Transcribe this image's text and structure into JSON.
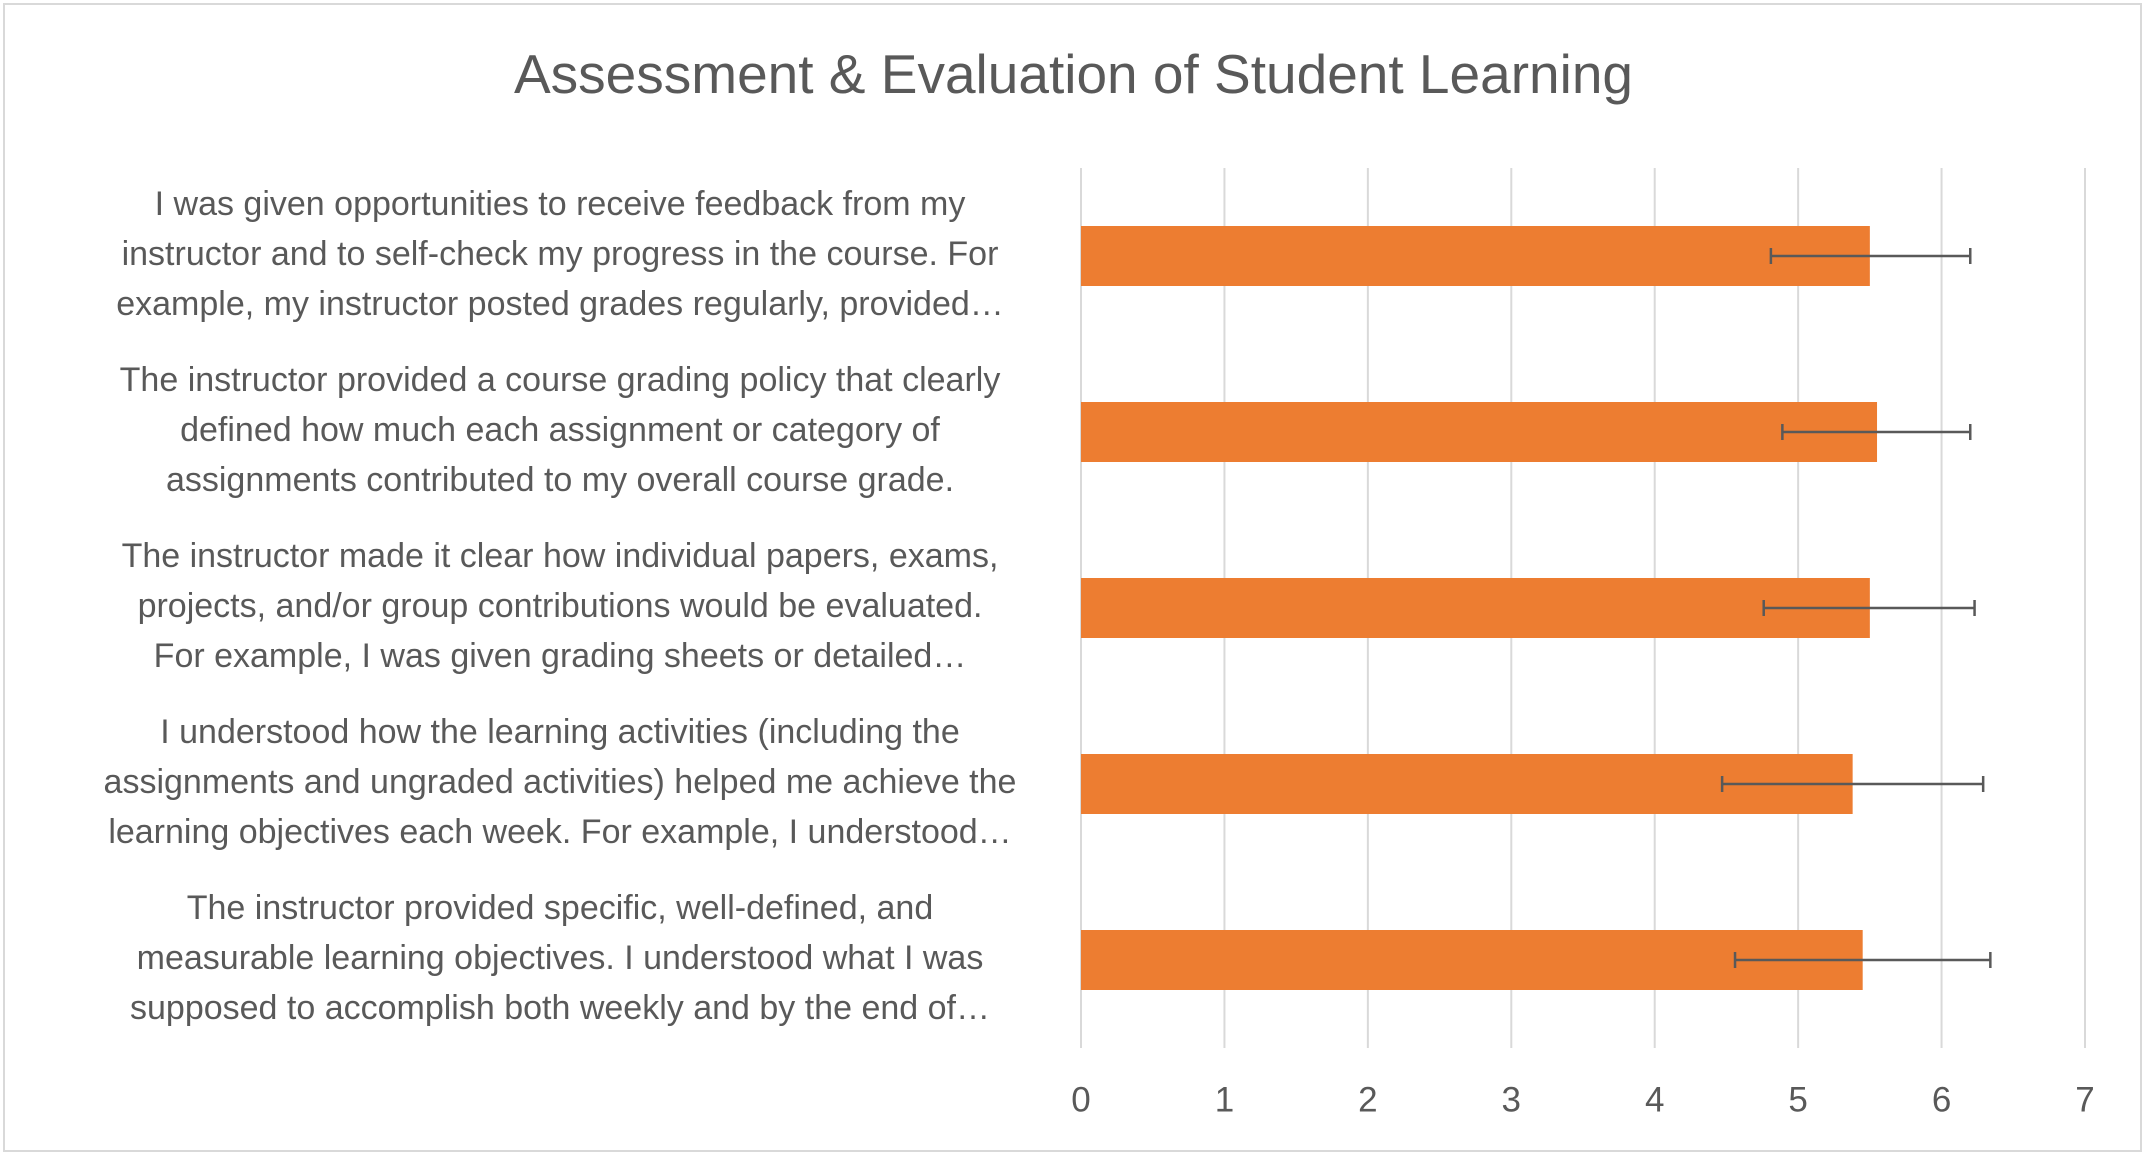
{
  "chart_data": {
    "type": "bar",
    "orientation": "horizontal",
    "title": "Assessment & Evaluation of Student Learning",
    "xlabel": "",
    "ylabel": "",
    "xlim": [
      0,
      7
    ],
    "xticks": [
      "0",
      "1",
      "2",
      "3",
      "4",
      "5",
      "6",
      "7"
    ],
    "grid": "vertical",
    "legend": "none",
    "bar_color": "#ED7D31",
    "error_bar_color": "#595959",
    "categories": [
      {
        "label_lines": [
          "I was given opportunities to receive feedback from my",
          "instructor and to self-check my progress in the course. For",
          "example, my instructor posted grades regularly, provided…"
        ],
        "value": 5.5,
        "err_low": 4.81,
        "err_high": 6.2
      },
      {
        "label_lines": [
          "The instructor provided a course grading policy that clearly",
          "defined how much each assignment or category of",
          "assignments contributed to my overall course grade."
        ],
        "value": 5.55,
        "err_low": 4.89,
        "err_high": 6.2
      },
      {
        "label_lines": [
          "The instructor made it clear how individual papers, exams,",
          "projects, and/or group contributions would be evaluated.",
          "For example, I was given grading sheets or detailed…"
        ],
        "value": 5.5,
        "err_low": 4.76,
        "err_high": 6.23
      },
      {
        "label_lines": [
          "I understood how the learning activities (including the",
          "assignments and ungraded activities) helped me achieve the",
          "learning objectives each week. For example, I understood…"
        ],
        "value": 5.38,
        "err_low": 4.47,
        "err_high": 6.29
      },
      {
        "label_lines": [
          "The instructor provided specific, well-defined, and",
          "measurable learning objectives. I understood what I was",
          "supposed to accomplish both weekly and by the end of…"
        ],
        "value": 5.45,
        "err_low": 4.56,
        "err_high": 6.34
      }
    ]
  }
}
